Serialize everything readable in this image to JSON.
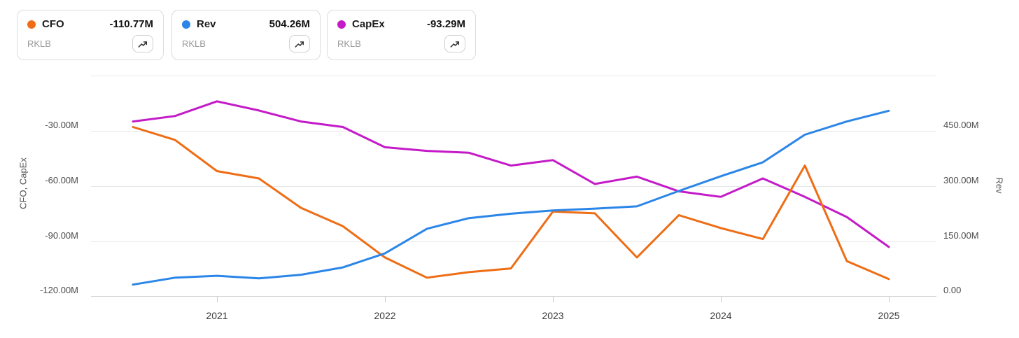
{
  "legend": {
    "cards": [
      {
        "label": "CFO",
        "value": "-110.77M",
        "ticker": "RKLB",
        "color": "#ee6d15",
        "icon": "trending-up-icon"
      },
      {
        "label": "Rev",
        "value": "504.26M",
        "ticker": "RKLB",
        "color": "#2b86e8",
        "icon": "trending-up-icon"
      },
      {
        "label": "CapEx",
        "value": "-93.29M",
        "ticker": "RKLB",
        "color": "#c41bc8",
        "icon": "trending-up-icon"
      }
    ]
  },
  "chart_data": {
    "type": "line",
    "x_categories": [
      "2020-Q3",
      "2020-Q4",
      "2021-Q1",
      "2021-Q2",
      "2021-Q3",
      "2021-Q4",
      "2022-Q1",
      "2022-Q2",
      "2022-Q3",
      "2022-Q4",
      "2023-Q1",
      "2023-Q2",
      "2023-Q3",
      "2023-Q4",
      "2024-Q1",
      "2024-Q2",
      "2024-Q3",
      "2024-Q4",
      "2025-Q1"
    ],
    "x_tick_labels": [
      "2021",
      "2022",
      "2023",
      "2024",
      "2025"
    ],
    "left_axis": {
      "title": "CFO, CapEx",
      "tick_labels": [
        "-30.00M",
        "-60.00M",
        "-90.00M",
        "-120.00M"
      ],
      "tick_values": [
        -30,
        -60,
        -90,
        -120
      ],
      "range": [
        -120,
        0
      ],
      "unit": "M"
    },
    "right_axis": {
      "title": "Rev",
      "tick_labels": [
        "450.00M",
        "300.00M",
        "150.00M",
        "0.00"
      ],
      "tick_values": [
        450,
        300,
        150,
        0
      ],
      "range": [
        0,
        600
      ],
      "unit": "M"
    },
    "grid": true,
    "legend_position": "top-left-cards",
    "series": [
      {
        "name": "CapEx",
        "axis": "left",
        "color": "#c41bc8",
        "values": [
          -25,
          -22,
          -14,
          -19,
          -25,
          -28,
          -39,
          -41,
          -42,
          -49,
          -46,
          -59,
          -55,
          -63,
          -66,
          -56,
          -66,
          -77,
          -93.29
        ]
      },
      {
        "name": "CFO",
        "axis": "left",
        "color": "#ee6d15",
        "values": [
          -28,
          -35,
          -52,
          -56,
          -72,
          -82,
          -99,
          -110,
          -107,
          -105,
          -74,
          -75,
          -99,
          -76,
          -83,
          -89,
          -49,
          -101,
          -110.77
        ]
      },
      {
        "name": "Rev",
        "axis": "right",
        "color": "#2b86e8",
        "values": [
          31,
          50,
          55,
          48,
          58,
          78,
          116,
          183,
          212,
          224,
          233,
          238,
          244,
          286,
          326,
          364,
          439,
          475,
          504.26
        ]
      }
    ]
  }
}
